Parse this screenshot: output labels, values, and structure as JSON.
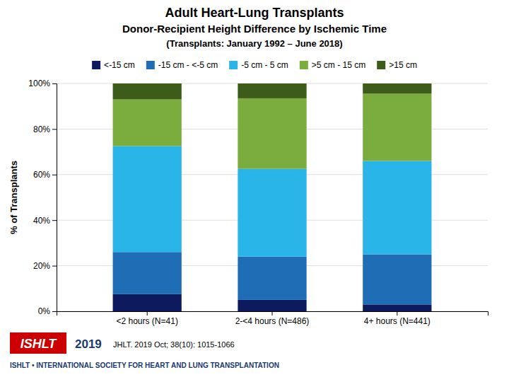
{
  "chart_data": {
    "type": "bar",
    "title": "Adult Heart-Lung Transplants",
    "subtitle": [
      "Donor-Recipient Height Difference by Ischemic Time",
      "(Transplants: January 1992 – June 2018)"
    ],
    "categories": [
      "<2 hours (N=41)",
      "2-<4 hours (N=486)",
      "4+ hours (N=441)"
    ],
    "series": [
      {
        "name": "<-15 cm",
        "color": "#0d1a5e",
        "values": [
          7.5,
          5.0,
          3.0
        ]
      },
      {
        "name": "-15 cm - <-5 cm",
        "color": "#1e6db5",
        "values": [
          18.5,
          19.0,
          22.0
        ]
      },
      {
        "name": "-5 cm - 5 cm",
        "color": "#29b5e8",
        "values": [
          46.5,
          38.5,
          41.0
        ]
      },
      {
        "name": ">5 cm - 15 cm",
        "color": "#7aad3e",
        "values": [
          20.5,
          31.0,
          29.5
        ]
      },
      {
        "name": ">15 cm",
        "color": "#3d5c1a",
        "values": [
          7.0,
          6.5,
          4.5
        ]
      }
    ],
    "stacked": true,
    "ylabel": "% of Transplants",
    "ylim": [
      0,
      100
    ],
    "yticks": [
      {
        "value": 0,
        "label": "0%"
      },
      {
        "value": 20,
        "label": "20%"
      },
      {
        "value": 40,
        "label": "40%"
      },
      {
        "value": 60,
        "label": "60%"
      },
      {
        "value": 80,
        "label": "80%"
      },
      {
        "value": 100,
        "label": "100%"
      }
    ],
    "grid": true,
    "legend": "top",
    "annotations": [
      "ISHLT",
      "ISHLT • INTERNATIONAL SOCIETY FOR HEART AND LUNG TRANSPLANTATION",
      "2019",
      "JHLT. 2019 Oct; 38(10): 1015-1066"
    ]
  }
}
